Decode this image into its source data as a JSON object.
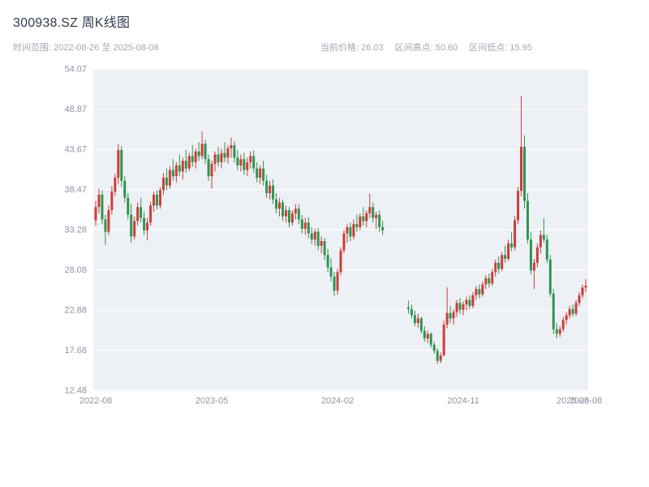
{
  "header": {
    "title": "300938.SZ 周K线图",
    "time_range": "时间范围: 2022-08-26 至 2025-08-08",
    "stats": [
      "当前价格: 26.03",
      "区间高点: 50.60",
      "区间低点: 15.95"
    ]
  },
  "chart_data": {
    "type": "candlestick",
    "title": "300938.SZ 周K线图",
    "symbol": "300938.SZ",
    "interval": "weekly",
    "start_date": "2022-08-26",
    "end_date": "2025-08-08",
    "current_price": 26.03,
    "range_high": 50.6,
    "range_low": 15.95,
    "ylim": [
      12.48,
      54.07
    ],
    "y_ticks": [
      54.07,
      48.87,
      43.67,
      38.47,
      33.28,
      28.08,
      22.88,
      17.68,
      12.48
    ],
    "x_ticks": [
      {
        "label": "2022-08",
        "week": 0
      },
      {
        "label": "2023-05",
        "week": 36
      },
      {
        "label": "2024-02",
        "week": 75
      },
      {
        "label": "2024-11",
        "week": 114
      },
      {
        "label": "2025-08",
        "week": 148
      },
      {
        "label": "2025-08",
        "week": 152
      }
    ],
    "colors": {
      "up": "#cc3e3a",
      "down": "#2f9550",
      "plot_bg": "#edf0f5",
      "grid": "#ffffff",
      "axis_text": "#8c96a5"
    },
    "candles": [
      [
        34.5,
        37.0,
        33.8,
        36.2
      ],
      [
        36.2,
        38.6,
        35.4,
        37.8
      ],
      [
        37.8,
        38.4,
        34.0,
        34.6
      ],
      [
        34.6,
        35.2,
        31.3,
        33.0
      ],
      [
        33.0,
        36.4,
        32.6,
        35.8
      ],
      [
        35.8,
        38.9,
        35.2,
        38.2
      ],
      [
        38.2,
        40.5,
        37.6,
        40.0
      ],
      [
        40.0,
        44.4,
        39.2,
        43.6
      ],
      [
        43.6,
        44.1,
        38.8,
        39.6
      ],
      [
        39.6,
        40.2,
        36.8,
        37.4
      ],
      [
        37.4,
        38.0,
        34.6,
        35.2
      ],
      [
        35.2,
        36.6,
        31.6,
        32.4
      ],
      [
        32.4,
        35.0,
        32.0,
        34.4
      ],
      [
        34.4,
        36.8,
        33.8,
        36.2
      ],
      [
        36.2,
        37.4,
        34.2,
        34.8
      ],
      [
        34.8,
        35.6,
        32.6,
        33.2
      ],
      [
        33.2,
        34.8,
        31.9,
        34.2
      ],
      [
        34.2,
        36.9,
        33.8,
        36.4
      ],
      [
        36.4,
        38.2,
        35.6,
        37.8
      ],
      [
        37.8,
        38.4,
        35.9,
        36.4
      ],
      [
        36.4,
        38.8,
        36.0,
        38.4
      ],
      [
        38.4,
        40.6,
        37.8,
        40.0
      ],
      [
        40.0,
        41.2,
        38.4,
        39.0
      ],
      [
        39.0,
        41.5,
        38.6,
        41.0
      ],
      [
        41.0,
        42.4,
        39.6,
        40.2
      ],
      [
        40.2,
        42.0,
        39.4,
        41.6
      ],
      [
        41.6,
        43.0,
        40.2,
        40.8
      ],
      [
        40.8,
        42.6,
        39.8,
        42.2
      ],
      [
        42.2,
        43.6,
        40.6,
        41.2
      ],
      [
        41.2,
        43.2,
        40.8,
        42.8
      ],
      [
        42.8,
        44.2,
        41.4,
        42.0
      ],
      [
        42.0,
        43.8,
        41.2,
        43.4
      ],
      [
        43.4,
        44.6,
        42.2,
        42.8
      ],
      [
        42.8,
        46.0,
        42.4,
        44.4
      ],
      [
        44.4,
        44.9,
        41.8,
        42.4
      ],
      [
        42.4,
        43.0,
        39.6,
        40.2
      ],
      [
        40.2,
        42.2,
        38.6,
        41.8
      ],
      [
        41.8,
        43.4,
        40.8,
        43.0
      ],
      [
        43.0,
        44.0,
        41.4,
        42.0
      ],
      [
        42.0,
        43.8,
        41.2,
        43.2
      ],
      [
        43.2,
        44.6,
        42.0,
        42.6
      ],
      [
        42.6,
        44.2,
        41.8,
        43.8
      ],
      [
        43.8,
        45.2,
        42.6,
        44.2
      ],
      [
        44.2,
        44.7,
        42.0,
        42.6
      ],
      [
        42.6,
        43.6,
        41.0,
        41.6
      ],
      [
        41.6,
        43.0,
        40.8,
        42.4
      ],
      [
        42.4,
        43.2,
        40.4,
        41.0
      ],
      [
        41.0,
        42.6,
        40.2,
        42.0
      ],
      [
        42.0,
        43.4,
        41.2,
        42.8
      ],
      [
        42.8,
        43.5,
        40.6,
        41.2
      ],
      [
        41.2,
        42.0,
        39.4,
        40.0
      ],
      [
        40.0,
        41.6,
        39.2,
        41.2
      ],
      [
        41.2,
        42.2,
        39.0,
        39.6
      ],
      [
        39.6,
        40.4,
        37.4,
        38.0
      ],
      [
        38.0,
        39.6,
        37.2,
        39.0
      ],
      [
        39.0,
        39.8,
        36.6,
        37.2
      ],
      [
        37.2,
        38.0,
        35.4,
        36.0
      ],
      [
        36.0,
        37.4,
        35.0,
        36.8
      ],
      [
        36.8,
        37.2,
        34.4,
        35.0
      ],
      [
        35.0,
        36.4,
        34.2,
        35.8
      ],
      [
        35.8,
        36.2,
        33.6,
        34.2
      ],
      [
        34.2,
        35.8,
        33.8,
        35.4
      ],
      [
        35.4,
        36.6,
        34.6,
        36.0
      ],
      [
        36.0,
        36.5,
        34.0,
        34.6
      ],
      [
        34.6,
        35.2,
        32.8,
        33.4
      ],
      [
        33.4,
        34.8,
        32.6,
        34.2
      ],
      [
        34.2,
        34.9,
        32.2,
        32.8
      ],
      [
        32.8,
        33.6,
        31.4,
        32.0
      ],
      [
        32.0,
        33.4,
        31.2,
        33.0
      ],
      [
        33.0,
        33.5,
        30.6,
        31.2
      ],
      [
        31.2,
        32.4,
        30.2,
        31.8
      ],
      [
        31.8,
        32.2,
        29.4,
        30.0
      ],
      [
        30.0,
        30.8,
        27.8,
        28.4
      ],
      [
        28.4,
        29.6,
        26.6,
        27.2
      ],
      [
        27.2,
        27.8,
        24.7,
        25.4
      ],
      [
        25.4,
        28.2,
        24.9,
        27.8
      ],
      [
        27.8,
        31.0,
        27.4,
        30.6
      ],
      [
        30.6,
        33.2,
        30.2,
        32.8
      ],
      [
        32.8,
        34.0,
        31.6,
        33.6
      ],
      [
        33.6,
        34.2,
        31.8,
        32.4
      ],
      [
        32.4,
        34.6,
        32.0,
        34.0
      ],
      [
        34.0,
        35.2,
        33.0,
        33.6
      ],
      [
        33.6,
        35.4,
        33.2,
        35.0
      ],
      [
        35.0,
        36.2,
        33.8,
        34.4
      ],
      [
        34.4,
        35.8,
        33.6,
        35.4
      ],
      [
        35.4,
        37.9,
        34.8,
        36.2
      ],
      [
        36.2,
        36.8,
        34.2,
        34.8
      ],
      [
        34.8,
        35.6,
        33.4,
        35.2
      ],
      [
        35.2,
        35.8,
        33.0,
        33.6
      ],
      [
        33.6,
        34.4,
        32.6,
        33.2
      ],
      null,
      null,
      null,
      null,
      null,
      null,
      null,
      [
        23.2,
        24.1,
        22.4,
        23.0
      ],
      [
        23.0,
        23.6,
        21.8,
        22.2
      ],
      [
        22.2,
        22.8,
        20.8,
        21.2
      ],
      [
        21.2,
        22.4,
        20.6,
        21.8
      ],
      [
        21.8,
        22.0,
        19.8,
        20.2
      ],
      [
        20.2,
        20.8,
        18.8,
        19.2
      ],
      [
        19.2,
        20.2,
        18.6,
        19.8
      ],
      [
        19.8,
        20.0,
        18.0,
        18.4
      ],
      [
        18.4,
        18.8,
        17.2,
        17.6
      ],
      [
        17.6,
        17.9,
        15.95,
        16.3
      ],
      [
        16.3,
        17.4,
        16.0,
        17.0
      ],
      [
        17.0,
        21.5,
        16.9,
        21.0
      ],
      [
        21.0,
        25.8,
        20.5,
        22.5
      ],
      [
        22.5,
        23.4,
        21.2,
        21.8
      ],
      [
        21.8,
        23.0,
        21.0,
        22.6
      ],
      [
        22.6,
        24.2,
        22.0,
        23.8
      ],
      [
        23.8,
        24.4,
        22.4,
        22.9
      ],
      [
        22.9,
        24.0,
        22.2,
        23.6
      ],
      [
        23.6,
        24.6,
        22.8,
        24.2
      ],
      [
        24.2,
        24.8,
        23.0,
        23.4
      ],
      [
        23.4,
        25.2,
        23.1,
        24.8
      ],
      [
        24.8,
        26.0,
        24.2,
        25.6
      ],
      [
        25.6,
        26.2,
        24.4,
        24.9
      ],
      [
        24.9,
        26.6,
        24.6,
        26.2
      ],
      [
        26.2,
        27.4,
        25.6,
        27.0
      ],
      [
        27.0,
        27.6,
        25.8,
        26.3
      ],
      [
        26.3,
        28.2,
        26.0,
        27.8
      ],
      [
        27.8,
        29.4,
        27.2,
        29.0
      ],
      [
        29.0,
        29.8,
        27.6,
        28.2
      ],
      [
        28.2,
        30.4,
        27.9,
        30.0
      ],
      [
        30.0,
        31.2,
        29.0,
        29.5
      ],
      [
        29.5,
        32.0,
        29.2,
        31.5
      ],
      [
        31.5,
        33.0,
        30.5,
        31.0
      ],
      [
        31.0,
        35.0,
        30.6,
        34.5
      ],
      [
        34.5,
        38.8,
        34.0,
        38.3
      ],
      [
        38.3,
        50.6,
        37.6,
        44.0
      ],
      [
        44.0,
        45.5,
        36.0,
        37.0
      ],
      [
        37.0,
        38.0,
        31.5,
        32.0
      ],
      [
        32.0,
        33.0,
        27.5,
        28.0
      ],
      [
        28.0,
        29.5,
        25.6,
        29.0
      ],
      [
        29.0,
        31.5,
        28.4,
        31.0
      ],
      [
        31.0,
        33.2,
        30.2,
        32.6
      ],
      [
        32.6,
        34.8,
        31.6,
        32.0
      ],
      [
        32.0,
        32.6,
        29.0,
        29.4
      ],
      [
        29.4,
        30.0,
        24.6,
        25.0
      ],
      [
        25.0,
        25.6,
        19.8,
        20.4
      ],
      [
        20.4,
        21.2,
        19.2,
        19.8
      ],
      [
        19.8,
        20.8,
        19.4,
        20.4
      ],
      [
        20.4,
        22.0,
        20.0,
        21.6
      ],
      [
        21.6,
        22.6,
        21.0,
        22.2
      ],
      [
        22.2,
        23.4,
        21.8,
        23.0
      ],
      [
        23.0,
        23.6,
        22.0,
        22.4
      ],
      [
        22.4,
        24.2,
        22.1,
        23.8
      ],
      [
        23.8,
        25.2,
        23.4,
        24.8
      ],
      [
        24.8,
        26.2,
        24.4,
        25.8
      ],
      [
        25.8,
        26.9,
        25.2,
        26.03
      ]
    ]
  }
}
